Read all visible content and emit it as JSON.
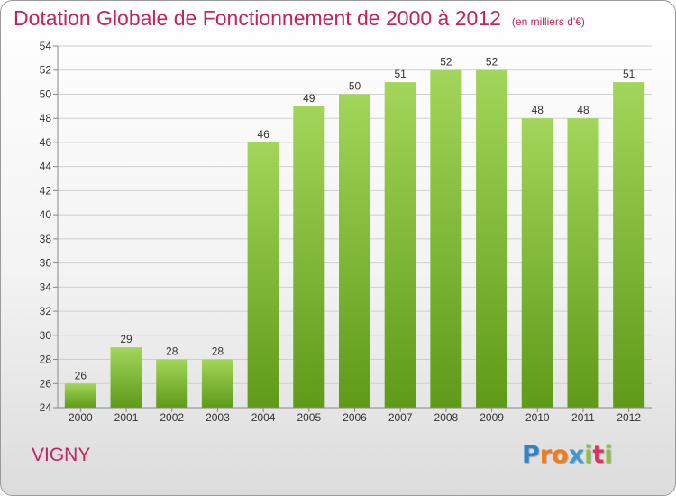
{
  "title": "Dotation Globale de Fonctionnement de 2000 à 2012",
  "subtitle": "(en milliers d'€)",
  "commune": "VIGNY",
  "logo": {
    "letters": [
      "P",
      "r",
      "o",
      "x",
      "i",
      "t",
      "i"
    ],
    "colors": [
      "#2e86c8",
      "#ef7d1a",
      "#ef7d1a",
      "#3a9ad6",
      "#8ac23c",
      "#d9345f",
      "#8ac23c"
    ]
  },
  "colors": {
    "bar_light": "#a2d65a",
    "bar_dark": "#5f9a18",
    "title": "#c3245f",
    "grid": "#cfcfcf",
    "axis": "#888888",
    "text": "#333333"
  },
  "chart_data": {
    "type": "bar",
    "categories": [
      "2000",
      "2001",
      "2002",
      "2003",
      "2004",
      "2005",
      "2006",
      "2007",
      "2008",
      "2009",
      "2010",
      "2011",
      "2012"
    ],
    "values": [
      26,
      29,
      28,
      28,
      46,
      49,
      50,
      51,
      52,
      52,
      48,
      48,
      51
    ],
    "ylim": [
      24,
      54
    ],
    "yticks": [
      24,
      26,
      28,
      30,
      32,
      34,
      36,
      38,
      40,
      42,
      44,
      46,
      48,
      50,
      52,
      54
    ],
    "grid": true,
    "legend": "none"
  }
}
